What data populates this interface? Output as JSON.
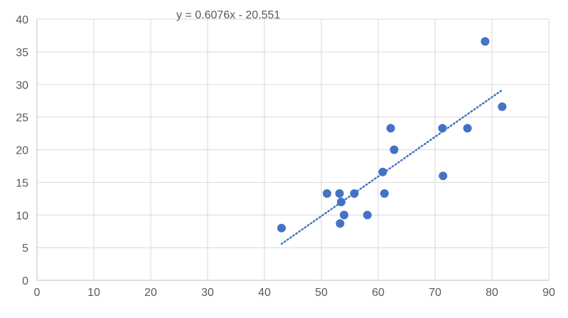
{
  "chart_data": {
    "type": "scatter",
    "title": "",
    "xlabel": "",
    "ylabel": "",
    "xlim": [
      0,
      90
    ],
    "ylim": [
      0,
      40
    ],
    "x_ticks": [
      0,
      10,
      20,
      30,
      40,
      50,
      60,
      70,
      80,
      90
    ],
    "y_ticks": [
      0,
      5,
      10,
      15,
      20,
      25,
      30,
      35,
      40
    ],
    "grid": true,
    "legend": "none",
    "series": [
      {
        "color": "#4472C4",
        "points": [
          [
            43.0,
            8.0
          ],
          [
            51.0,
            13.3
          ],
          [
            53.2,
            13.3
          ],
          [
            53.3,
            8.7
          ],
          [
            53.5,
            12.0
          ],
          [
            54.0,
            10.0
          ],
          [
            55.8,
            13.3
          ],
          [
            58.1,
            10.0
          ],
          [
            60.8,
            16.6
          ],
          [
            61.1,
            13.3
          ],
          [
            62.2,
            23.3
          ],
          [
            62.8,
            20.0
          ],
          [
            71.3,
            23.3
          ],
          [
            71.4,
            16.0
          ],
          [
            75.7,
            23.3
          ],
          [
            78.8,
            36.6
          ],
          [
            81.8,
            26.6
          ]
        ]
      }
    ],
    "trendline": {
      "type": "linear",
      "style": "dotted",
      "color": "#4472C4",
      "slope": 0.6076,
      "intercept": -20.551,
      "x_range": [
        43.0,
        81.8
      ],
      "equation": "y = 0.6076x - 20.551"
    },
    "colors": {
      "grid": "#D9D9D9",
      "axis": "#BFBFBF",
      "text": "#595959"
    }
  }
}
